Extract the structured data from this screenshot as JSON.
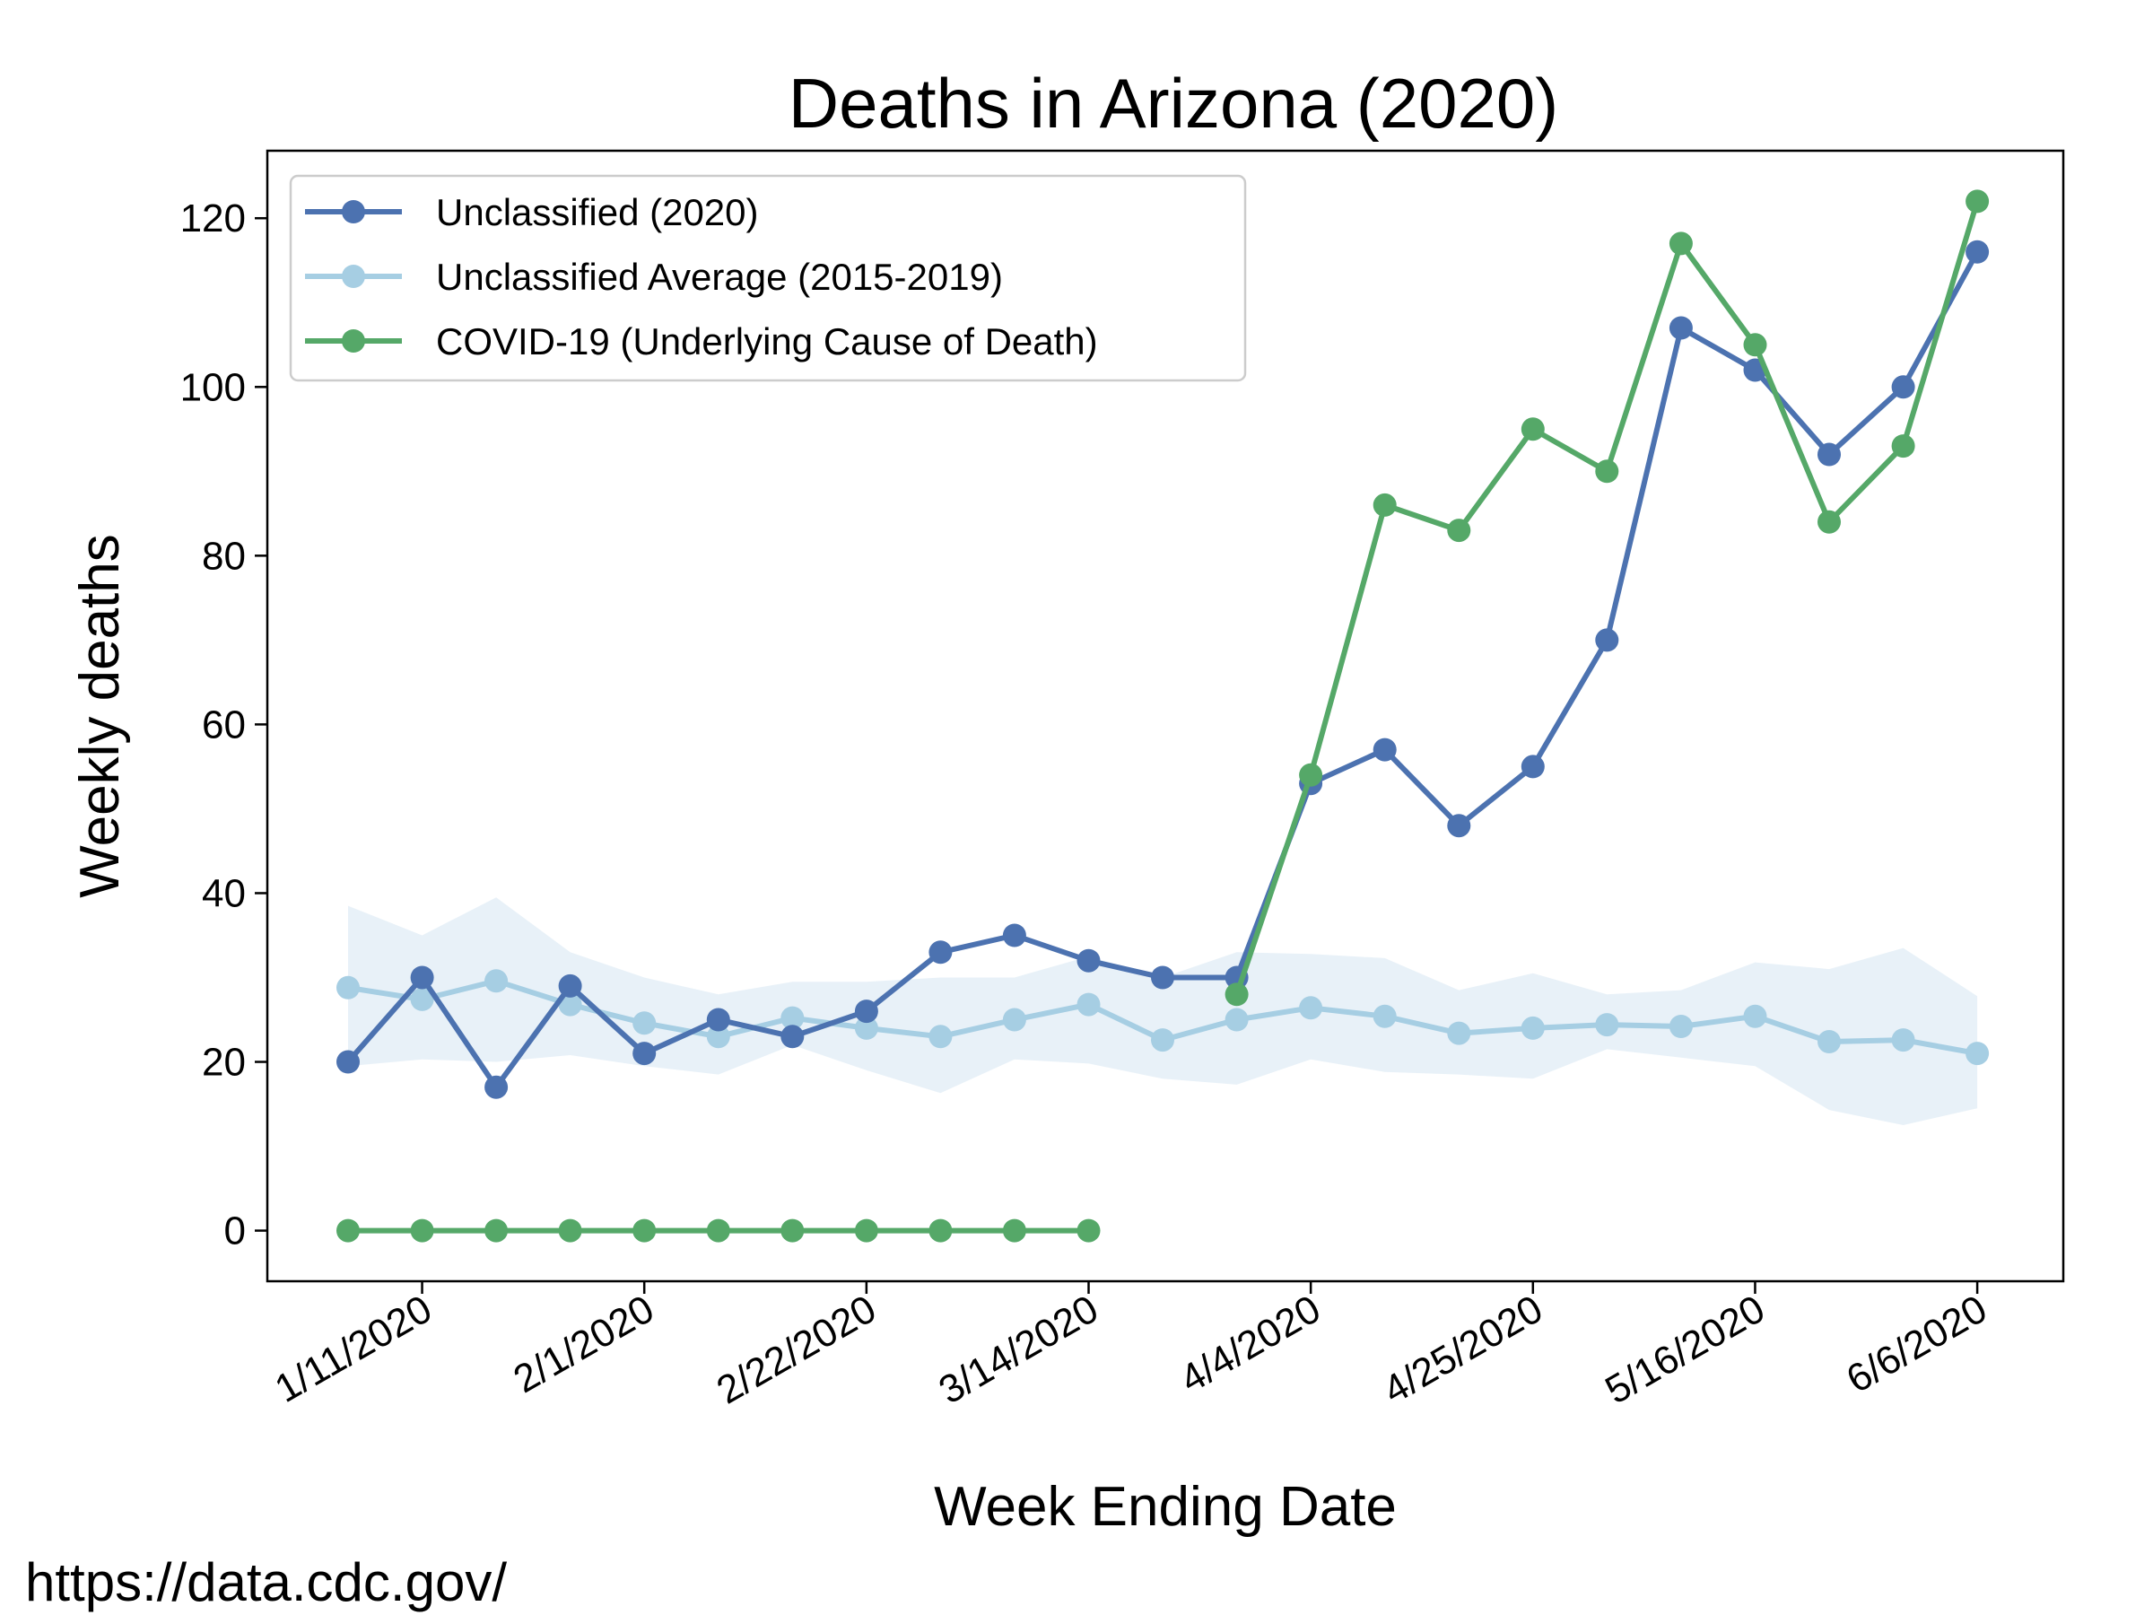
{
  "source_note": "https://data.cdc.gov/",
  "chart_data": {
    "type": "line",
    "title": "Deaths in Arizona (2020)",
    "xlabel": "Week Ending Date",
    "ylabel": "Weekly deaths",
    "x": [
      "1/4/2020",
      "1/11/2020",
      "1/18/2020",
      "1/25/2020",
      "2/1/2020",
      "2/8/2020",
      "2/15/2020",
      "2/22/2020",
      "2/29/2020",
      "3/7/2020",
      "3/14/2020",
      "3/21/2020",
      "3/28/2020",
      "4/4/2020",
      "4/11/2020",
      "4/18/2020",
      "4/25/2020",
      "5/2/2020",
      "5/9/2020",
      "5/16/2020",
      "5/23/2020",
      "5/30/2020",
      "6/6/2020"
    ],
    "x_tick_labels": [
      "1/11/2020",
      "2/1/2020",
      "2/22/2020",
      "3/14/2020",
      "4/4/2020",
      "4/25/2020",
      "5/16/2020",
      "6/6/2020"
    ],
    "ylim": [
      -6,
      128
    ],
    "y_ticks": [
      0,
      20,
      40,
      60,
      80,
      100,
      120
    ],
    "grid": false,
    "legend_position": "top-left",
    "series": [
      {
        "name": "Unclassified (2020)",
        "color": "#4c72b0",
        "x": [
          "1/4/2020",
          "1/11/2020",
          "1/18/2020",
          "1/25/2020",
          "2/1/2020",
          "2/8/2020",
          "2/15/2020",
          "2/22/2020",
          "2/29/2020",
          "3/7/2020",
          "3/14/2020",
          "3/21/2020",
          "3/28/2020",
          "4/4/2020",
          "4/11/2020",
          "4/18/2020",
          "4/25/2020",
          "5/2/2020",
          "5/9/2020",
          "5/16/2020",
          "5/23/2020",
          "5/30/2020",
          "6/6/2020"
        ],
        "values": [
          20,
          30,
          17,
          29,
          21,
          25,
          23,
          26,
          33,
          35,
          32,
          30,
          30,
          53,
          57,
          48,
          55,
          70,
          107,
          102,
          92,
          100,
          116
        ]
      },
      {
        "name": "Unclassified Average (2015-2019)",
        "color": "#a6cee3",
        "x": [
          "1/4/2020",
          "1/11/2020",
          "1/18/2020",
          "1/25/2020",
          "2/1/2020",
          "2/8/2020",
          "2/15/2020",
          "2/22/2020",
          "2/29/2020",
          "3/7/2020",
          "3/14/2020",
          "3/21/2020",
          "3/28/2020",
          "4/4/2020",
          "4/11/2020",
          "4/18/2020",
          "4/25/2020",
          "5/2/2020",
          "5/9/2020",
          "5/16/2020",
          "5/23/2020",
          "5/30/2020",
          "6/6/2020"
        ],
        "values": [
          28.8,
          27.4,
          29.6,
          26.8,
          24.6,
          23.0,
          25.2,
          24.0,
          23.0,
          25.0,
          26.8,
          22.6,
          25.0,
          26.4,
          25.4,
          23.4,
          24.0,
          24.4,
          24.2,
          25.4,
          22.4,
          22.6,
          21.0
        ],
        "band_upper": [
          38.5,
          35.0,
          39.5,
          33.0,
          30.0,
          28.0,
          29.5,
          29.5,
          30.0,
          30.0,
          32.5,
          30.0,
          33.0,
          32.8,
          32.3,
          28.5,
          30.5,
          28.0,
          28.5,
          31.8,
          31.0,
          33.5,
          27.8
        ],
        "band_lower": [
          19.5,
          20.3,
          20.0,
          20.8,
          19.5,
          18.5,
          22.0,
          19.0,
          16.3,
          20.3,
          19.8,
          18.0,
          17.3,
          20.3,
          18.8,
          18.5,
          18.0,
          21.5,
          20.5,
          19.5,
          14.3,
          12.5,
          14.5
        ]
      },
      {
        "name": "COVID-19 (Underlying Cause of Death)",
        "color": "#55a868",
        "segments": [
          {
            "x": [
              "1/4/2020",
              "1/11/2020",
              "1/18/2020",
              "1/25/2020",
              "2/1/2020",
              "2/8/2020",
              "2/15/2020",
              "2/22/2020",
              "2/29/2020",
              "3/7/2020",
              "3/14/2020"
            ],
            "values": [
              0,
              0,
              0,
              0,
              0,
              0,
              0,
              0,
              0,
              0,
              0
            ]
          },
          {
            "x": [
              "3/28/2020",
              "4/4/2020",
              "4/11/2020",
              "4/18/2020",
              "4/25/2020",
              "5/2/2020",
              "5/9/2020",
              "5/16/2020",
              "5/23/2020",
              "5/30/2020",
              "6/6/2020"
            ],
            "values": [
              28,
              54,
              86,
              83,
              95,
              90,
              117,
              105,
              84,
              93,
              122
            ]
          }
        ]
      }
    ]
  }
}
